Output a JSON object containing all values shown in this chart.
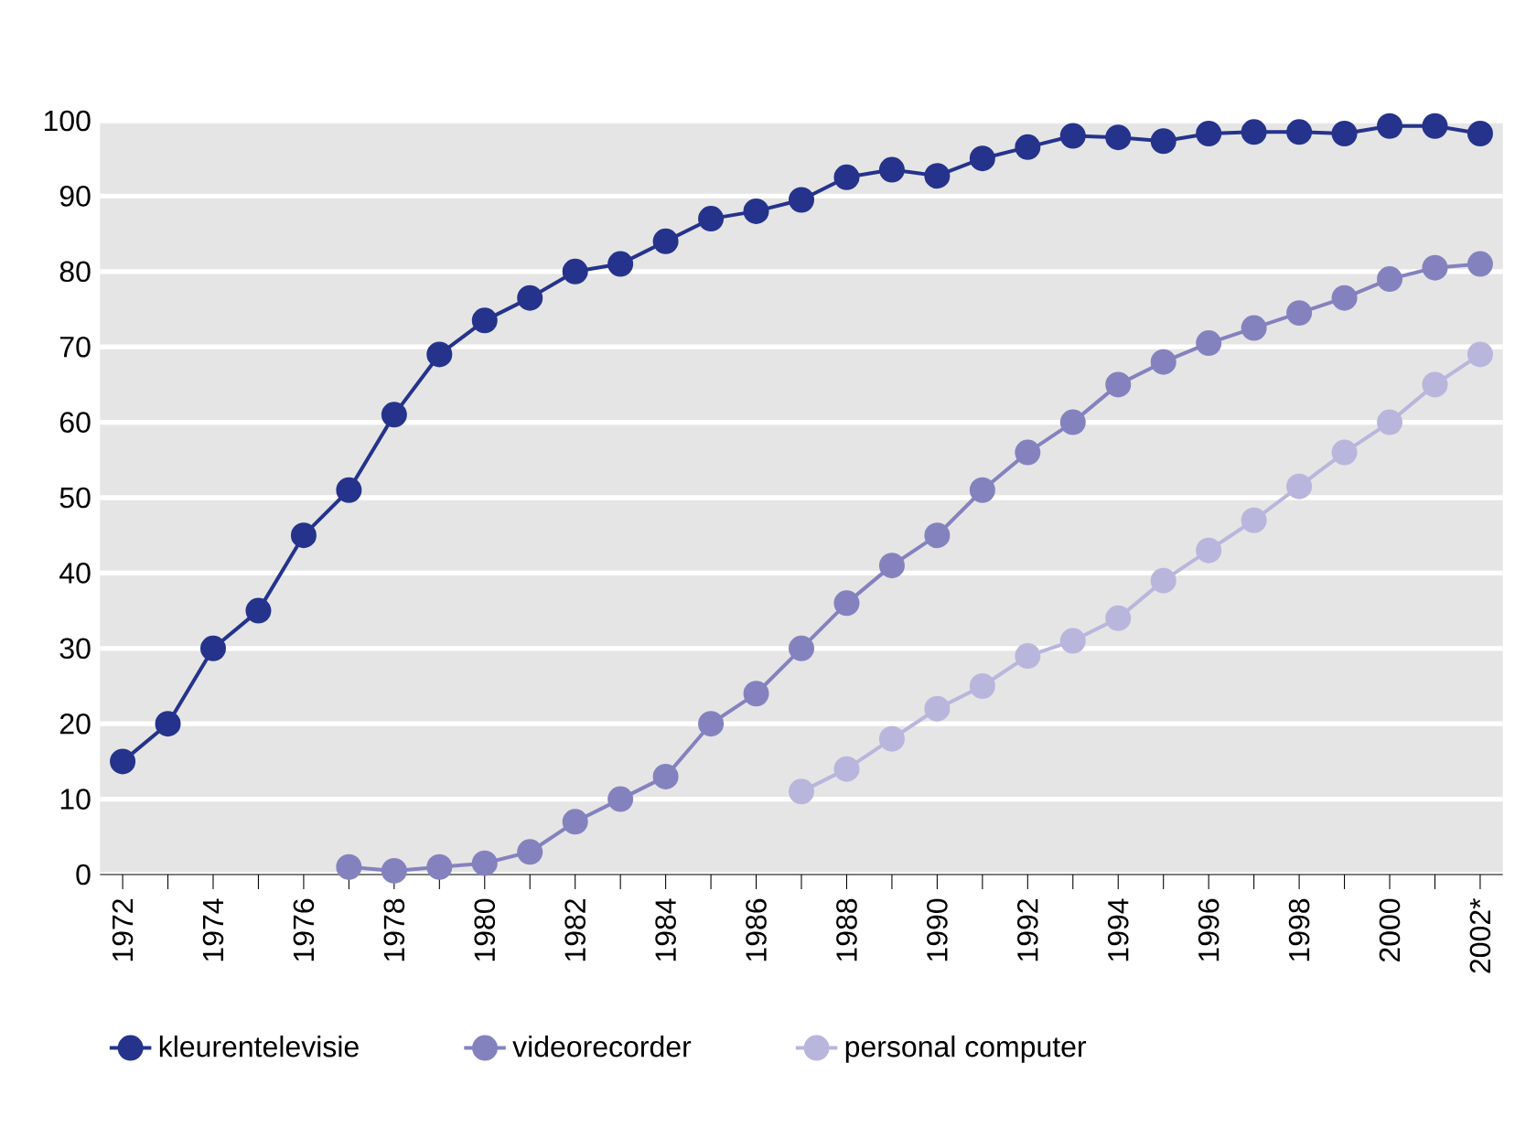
{
  "chart_data": {
    "type": "line",
    "categories": [
      "1972",
      null,
      "1974",
      null,
      "1976",
      null,
      "1978",
      null,
      "1980",
      null,
      "1982",
      null,
      "1984",
      null,
      "1986",
      null,
      "1988",
      null,
      "1990",
      null,
      "1992",
      null,
      "1994",
      null,
      "1996",
      null,
      "1998",
      null,
      "2000",
      null,
      "2002*"
    ],
    "series": [
      {
        "name": "kleurentelevisie",
        "color": "#25338c",
        "values": [
          15,
          20,
          30,
          35,
          45,
          51,
          61,
          69,
          73.5,
          76.5,
          80,
          81,
          84,
          87,
          88,
          89.5,
          92.5,
          93.5,
          92.7,
          95,
          96.5,
          98,
          97.8,
          97.3,
          98.3,
          98.5,
          98.5,
          98.3,
          99.3,
          99.3,
          98.3
        ]
      },
      {
        "name": "videorecorder",
        "color": "#8482be",
        "values": [
          null,
          null,
          null,
          null,
          null,
          1,
          0.5,
          1,
          1.5,
          3,
          7,
          10,
          13,
          20,
          24,
          30,
          36,
          41,
          45,
          51,
          56,
          60,
          65,
          68,
          70.5,
          72.5,
          74.5,
          76.5,
          79,
          80.5,
          81
        ]
      },
      {
        "name": "personal computer",
        "color": "#b8b6dc",
        "values": [
          null,
          null,
          null,
          null,
          null,
          null,
          null,
          null,
          null,
          null,
          null,
          null,
          null,
          null,
          null,
          11,
          14,
          18,
          22,
          25,
          29,
          31,
          34,
          39,
          43,
          47,
          51.5,
          56,
          60,
          65,
          69
        ]
      }
    ],
    "ylim": [
      0,
      100
    ],
    "yticks": [
      0,
      10,
      20,
      30,
      40,
      50,
      60,
      70,
      80,
      90,
      100
    ],
    "grid": "y",
    "legend": "bottom",
    "marker": "circle",
    "line_style": "solid"
  }
}
